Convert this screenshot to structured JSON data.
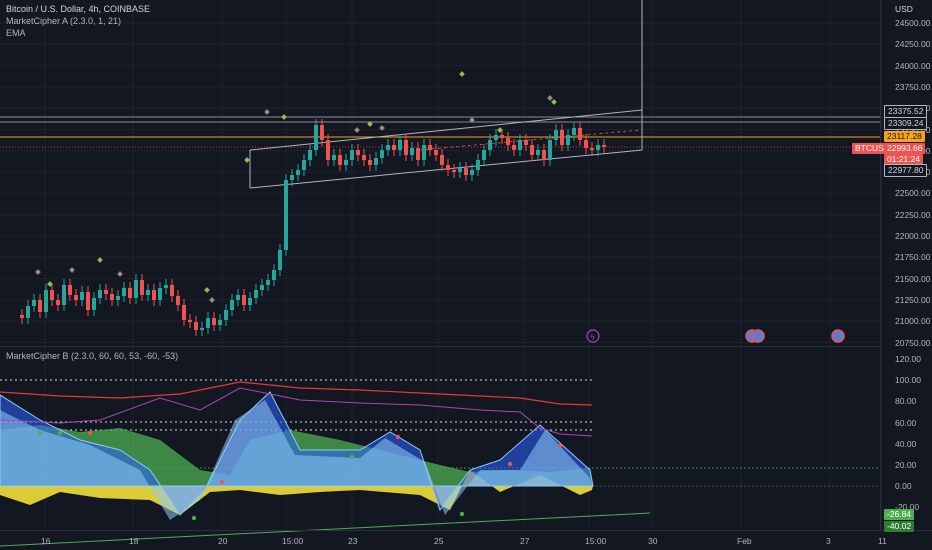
{
  "header": {
    "symbol_line": "Bitcoin / U.S. Dollar, 4h, COINBASE",
    "indicator_a": "MarketCipher A (2.3.0, 1, 21)",
    "indicator_ema": "EMA",
    "indicator_b": "MarketCipher B (2.3.0, 60, 60, 53, -60, -53)"
  },
  "price_axis": {
    "currency": "USD",
    "ticks": [
      "24500.00",
      "24250.00",
      "24000.00",
      "23750.00",
      "23500.00",
      "23250.00",
      "23000.00",
      "22750.00",
      "22500.00",
      "22250.00",
      "22000.00",
      "21750.00",
      "21500.00",
      "21250.00",
      "21000.00",
      "20750.00"
    ]
  },
  "price_tags": {
    "t1": "23375.52",
    "t2": "23309.24",
    "t3": "23117.28",
    "symbol": "BTCUSD",
    "last_price": "22993.66",
    "countdown": "01:21:24",
    "t4": "22977.80"
  },
  "osc_axis": {
    "ticks": [
      "120.00",
      "100.00",
      "80.00",
      "60.00",
      "40.00",
      "20.00",
      "0.00",
      "-20.00"
    ],
    "tag_a": "-26.84",
    "tag_b": "-40.02"
  },
  "time_axis": [
    "16",
    "18",
    "20",
    "15:00",
    "23",
    "25",
    "27",
    "15:00",
    "30",
    "Feb",
    "3",
    "11"
  ],
  "colors": {
    "background": "#131722",
    "up": "#26a69a",
    "down": "#ef5350",
    "orange": "#f7a21b",
    "green_wave": "#4caf50",
    "blue_wave": "#2962ff",
    "yellow": "#ffeb3b"
  },
  "icons": {
    "event1": "lightning-icon",
    "event2": "us-flag-icon",
    "event3": "us-flag-icon"
  }
}
